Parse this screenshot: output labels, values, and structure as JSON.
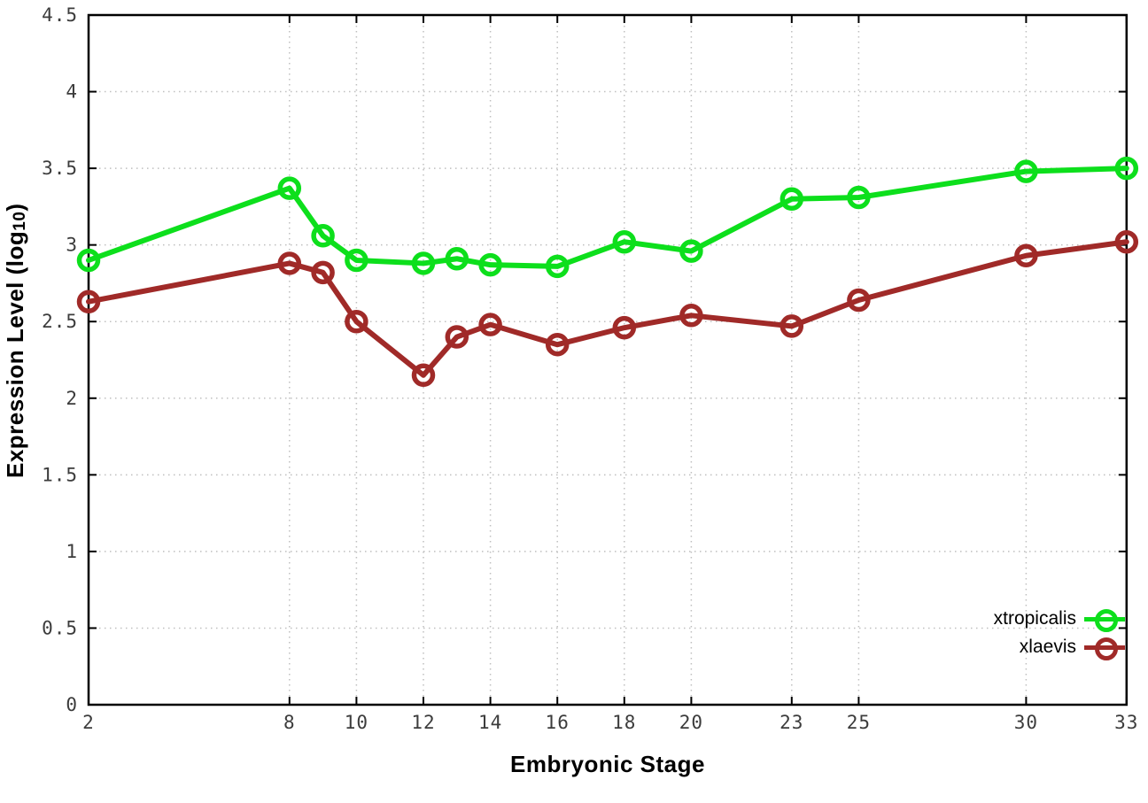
{
  "figure": {
    "background": "#ffffff",
    "axis_color": "#000000",
    "grid_color": "#bfbfbf",
    "tick_text_color": "#3c3c3c"
  },
  "chart_data": {
    "type": "line",
    "title": "",
    "xlabel": "Embryonic Stage",
    "ylabel_parts": {
      "prefix": "Expression Level (log",
      "sub": "10",
      "suffix": ")"
    },
    "x": [
      2,
      8,
      9,
      10,
      12,
      13,
      14,
      16,
      18,
      20,
      23,
      25,
      30,
      33
    ],
    "series": [
      {
        "name": "xtropicalis",
        "color": "#0ddf1c",
        "marker": "open-circle",
        "values": [
          2.9,
          3.37,
          3.06,
          2.9,
          2.88,
          2.91,
          2.87,
          2.86,
          3.02,
          2.96,
          3.3,
          3.31,
          3.48,
          3.5
        ]
      },
      {
        "name": "xlaevis",
        "color": "#a02a28",
        "marker": "open-circle",
        "values": [
          2.63,
          2.88,
          2.82,
          2.5,
          2.15,
          2.4,
          2.48,
          2.35,
          2.46,
          2.54,
          2.47,
          2.64,
          2.93,
          3.02
        ]
      }
    ],
    "xlim": [
      2,
      33
    ],
    "ylim": [
      0,
      4.5
    ],
    "x_ticks": [
      2,
      8,
      10,
      12,
      14,
      16,
      18,
      20,
      23,
      25,
      30,
      33
    ],
    "x_tick_labels": [
      "2",
      "8",
      "10",
      "12",
      "14",
      "16",
      "18",
      "20",
      "23",
      "25",
      "30",
      "33"
    ],
    "y_ticks": [
      0,
      0.5,
      1,
      1.5,
      2,
      2.5,
      3,
      3.5,
      4,
      4.5
    ],
    "y_tick_labels": [
      "0",
      "0.5",
      "1",
      "1.5",
      "2",
      "2.5",
      "3",
      "3.5",
      "4",
      "4.5"
    ],
    "grid": true,
    "legend_position": "bottom-right"
  },
  "legend": {
    "items": [
      {
        "label": "xtropicalis",
        "color": "#0ddf1c"
      },
      {
        "label": "xlaevis",
        "color": "#a02a28"
      }
    ]
  }
}
